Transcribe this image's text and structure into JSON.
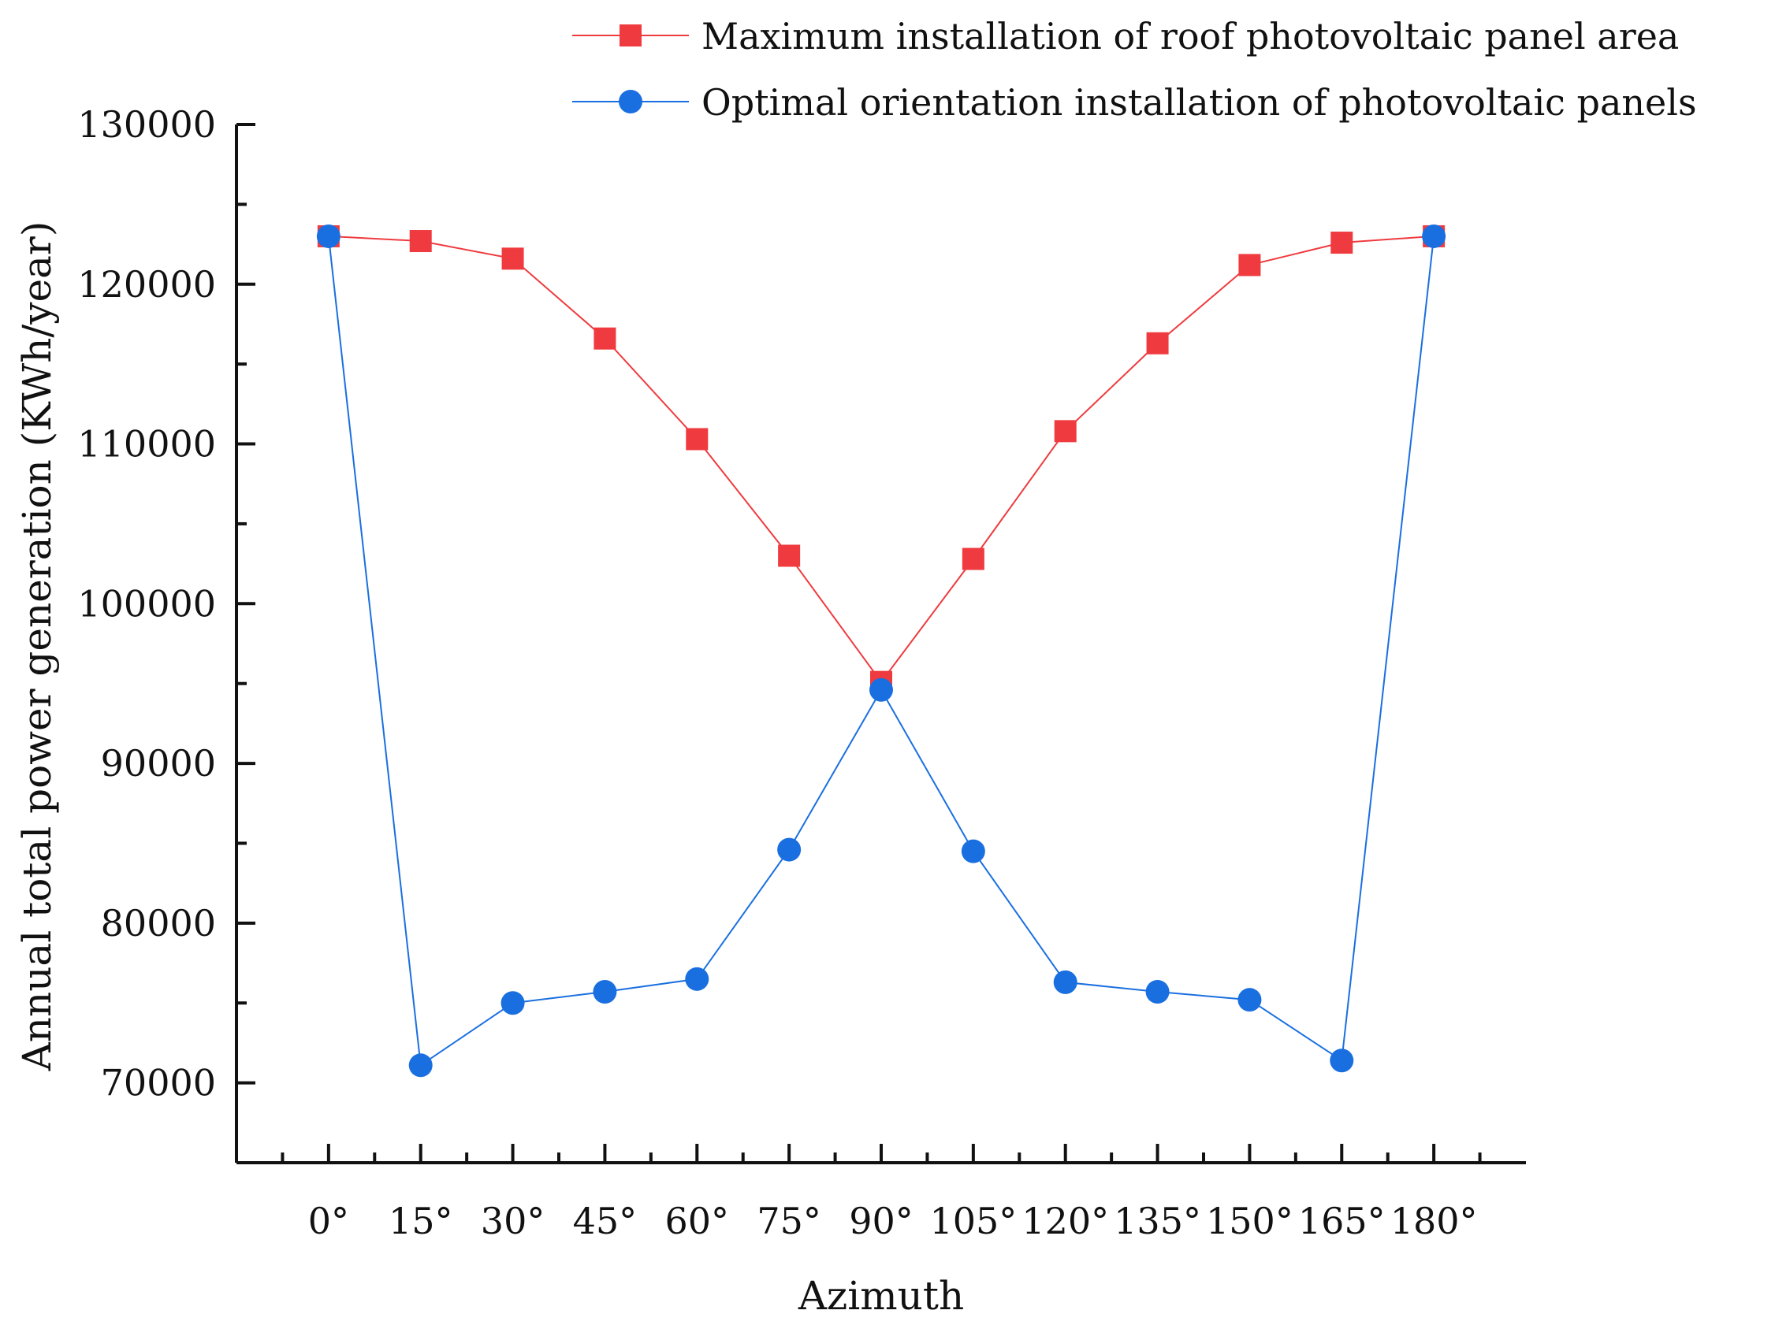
{
  "chart_data": {
    "type": "line",
    "title": "",
    "xlabel": "Azimuth",
    "ylabel": "Annual total power generation (KWh/year)",
    "categories": [
      "0°",
      "15°",
      "30°",
      "45°",
      "60°",
      "75°",
      "90°",
      "105°",
      "120°",
      "135°",
      "150°",
      "165°",
      "180°"
    ],
    "x": [
      0,
      15,
      30,
      45,
      60,
      75,
      90,
      105,
      120,
      135,
      150,
      165,
      180
    ],
    "xlim": [
      -15,
      195
    ],
    "ylim": [
      65000,
      130000
    ],
    "yticks": [
      70000,
      80000,
      90000,
      100000,
      110000,
      120000,
      130000
    ],
    "ytick_labels": [
      "70000",
      "80000",
      "90000",
      "100000",
      "110000",
      "120000",
      "130000"
    ],
    "grid": false,
    "legend_position": "top-right",
    "series": [
      {
        "name": "Maximum installation of roof photovoltaic panel area",
        "marker": "square",
        "color": "#ef3b3f",
        "values": [
          123000,
          122700,
          121600,
          116600,
          110300,
          103000,
          95100,
          102800,
          110800,
          116300,
          121200,
          122600,
          123000
        ]
      },
      {
        "name": "Optimal orientation installation of photovoltaic panels",
        "marker": "circle",
        "color": "#1a6fe0",
        "values": [
          123000,
          71100,
          75000,
          75700,
          76500,
          84600,
          94600,
          84500,
          76300,
          75700,
          75200,
          71400,
          123000
        ]
      }
    ]
  }
}
